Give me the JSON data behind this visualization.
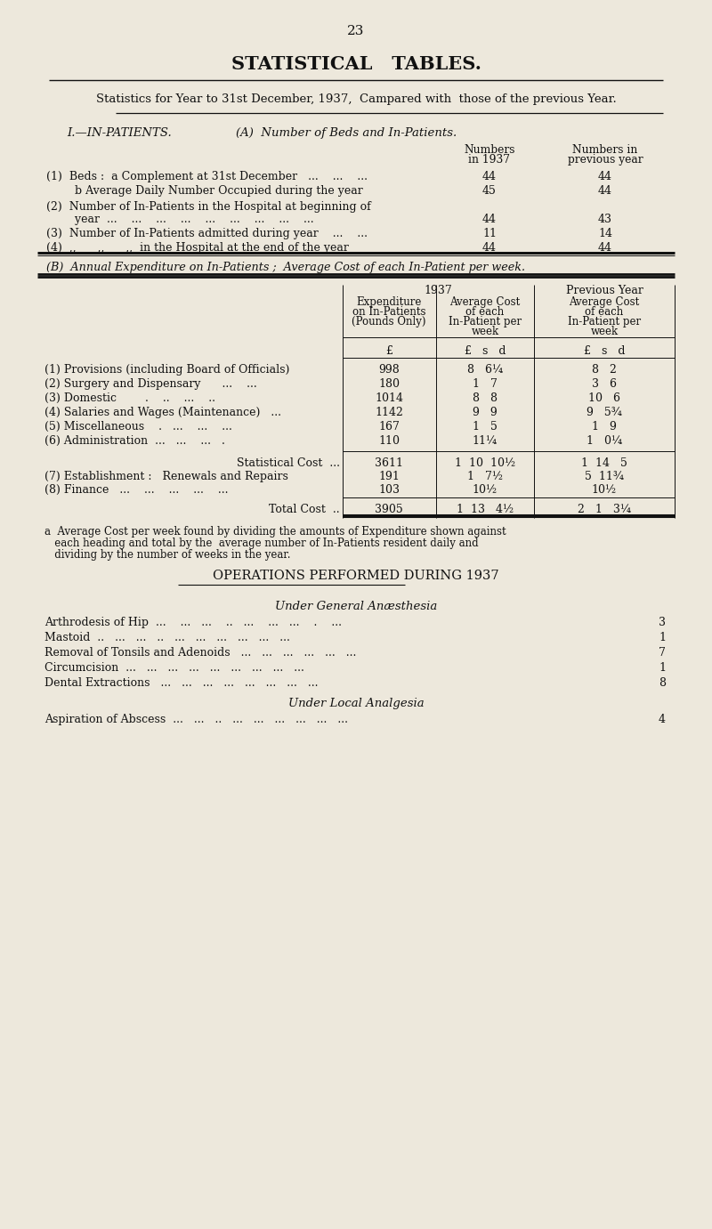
{
  "bg_color": "#ede8dc",
  "text_color": "#111111",
  "page_number": "23",
  "main_title": "STATISTICAL   TABLES.",
  "subtitle": "Statistics for Year to 31st December, 1937,  Campared with  those of the previous Year.",
  "section_A_header": "I.—IN-PATIENTS.",
  "section_A_sub": "(A)  Number of Beds and In-Patients.",
  "col_header_1937_line1": "Numbers",
  "col_header_1937_line2": "in 1937",
  "col_header_prev_line1": "Numbers in",
  "col_header_prev_line2": "previous year",
  "section_A_rows": [
    {
      "label1": "(1)  Beds :  a Complement at 31st December   ...    ...    ...",
      "label2": "",
      "v1937": "44",
      "vprev": "44"
    },
    {
      "label1": "        b Average Daily Number Occupied during the year",
      "label2": "",
      "v1937": "45",
      "vprev": "44"
    },
    {
      "label1": "(2)  Number of In-Patients in the Hospital at beginning of",
      "label2": "        year  ...    ...    ...    ...    ...    ...    ...    ...    ...",
      "v1937": "44",
      "vprev": "43"
    },
    {
      "label1": "(3)  Number of In-Patients admitted during year    ...    ...",
      "label2": "",
      "v1937": "11",
      "vprev": "14"
    },
    {
      "label1": "(4)  „„    „„    „„  in the Hospital at the end of the year",
      "label2": "",
      "v1937": "44",
      "vprev": "44"
    }
  ],
  "section_B_title": "(B)  Annual Expenditure on In-Patients ;  Average Cost of each In-Patient per week.",
  "table_B_year_header": "1937",
  "table_B_prev_header": "Previous Year",
  "table_B_col1_lines": [
    "Expenditure",
    "on In-Patients",
    "(Pounds Only)"
  ],
  "table_B_col2_lines": [
    "Average Cost",
    "of each",
    "In-Patient per",
    "week"
  ],
  "table_B_col3_lines": [
    "Average Cost",
    "of each",
    "In-Patient per",
    "week"
  ],
  "currency_row": [
    "£",
    "£   s   d",
    "£   s   d"
  ],
  "table_B_rows": [
    {
      "label": "(1) Provisions (including Board of Officials)",
      "exp": "998",
      "avg1937": "8   6¼",
      "avgprev": "8   2"
    },
    {
      "label": "(2) Surgery and Dispensary      ...    ...",
      "exp": "180",
      "avg1937": "1   7",
      "avgprev": "3   6"
    },
    {
      "label": "(3) Domestic        .    ..    ...    ..",
      "exp": "1014",
      "avg1937": "8   8",
      "avgprev": "10   6"
    },
    {
      "label": "(4) Salaries and Wages (Maintenance)   ...",
      "exp": "1142",
      "avg1937": "9   9",
      "avgprev": "9   5¾"
    },
    {
      "label": "(5) Miscellaneous    .   ...    ...    ...",
      "exp": "167",
      "avg1937": "1   5",
      "avgprev": "1   9"
    },
    {
      "label": "(6) Administration  ...   ...    ...   .",
      "exp": "110",
      "avg1937": "11¼",
      "avgprev": "1   0¼"
    }
  ],
  "stat_cost_row": {
    "label": "Statistical Cost  ...",
    "exp": "3611",
    "avg1937": "1  10  10½",
    "avgprev": "1  14   5"
  },
  "extra_rows": [
    {
      "label": "(7) Establishment :   Renewals and Repairs",
      "exp": "191",
      "avg1937": "1   7½",
      "avgprev": "5  11¾"
    },
    {
      "label": "(8) Finance   ...    ...    ...    ...    ...",
      "exp": "103",
      "avg1937": "10½",
      "avgprev": "10½"
    }
  ],
  "total_row": {
    "label": "Total Cost  ..",
    "exp": "3905",
    "avg1937": "1  13   4½",
    "avgprev": "2   1   3¼"
  },
  "footnote_lines": [
    "a  Average Cost per week found by dividing the amounts of Expenditure shown against",
    "   each heading and total by the  average number of In-Patients resident daily and",
    "   dividing by the number of weeks in the year."
  ],
  "ops_title": "OPERATIONS PERFORMED DURING 1937",
  "ops_general_title": "Under General Anæsthesia",
  "ops_general": [
    {
      "name": "Arthrodesis of Hip",
      "dots": "  ...    ...   ...    ..   ...    ...   ...    .    ...",
      "count": "3"
    },
    {
      "name": "Mastoid",
      "dots": "  ..   ...   ...   ..   ...   ...   ...   ...   ...   ...",
      "count": "1"
    },
    {
      "name": "Removal of Tonsils and Adenoids",
      "dots": "   ...   ...   ...   ...   ...   ...",
      "count": "7"
    },
    {
      "name": "Circumcision",
      "dots": "  ...   ...   ...   ...   ...   ...   ...   ...   ...",
      "count": "1"
    },
    {
      "name": "Dental Extractions",
      "dots": "   ...   ...   ...   ...   ...   ...   ...   ...",
      "count": "8"
    }
  ],
  "ops_local_title": "Under Local Analgesia",
  "ops_local": [
    {
      "name": "Aspiration of Abscess",
      "dots": "  ...   ...   ..   ...   ...   ...   ...   ...   ...",
      "count": "4"
    }
  ]
}
